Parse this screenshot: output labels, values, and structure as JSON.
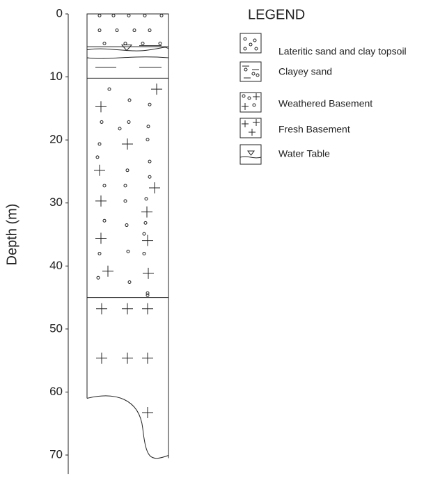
{
  "axis": {
    "label": "Depth (m)",
    "range": [
      0,
      73
    ],
    "ticks": [
      0,
      10,
      20,
      30,
      40,
      50,
      60,
      70
    ]
  },
  "legend": {
    "title": "LEGEND",
    "items": [
      {
        "label": "Lateritic sand and clay topsoil",
        "top": 0,
        "bottom": 5.2
      },
      {
        "label": "Clayey sand",
        "top": 5.2,
        "bottom": 10.2
      },
      {
        "label": "Weathered Basement",
        "top": 10.2,
        "bottom": 45
      },
      {
        "label": "Fresh Basement",
        "top": 45,
        "bottom_left": 61,
        "bottom_right": 70.5
      },
      {
        "label": "Water Table",
        "depth": 5.7
      }
    ]
  }
}
